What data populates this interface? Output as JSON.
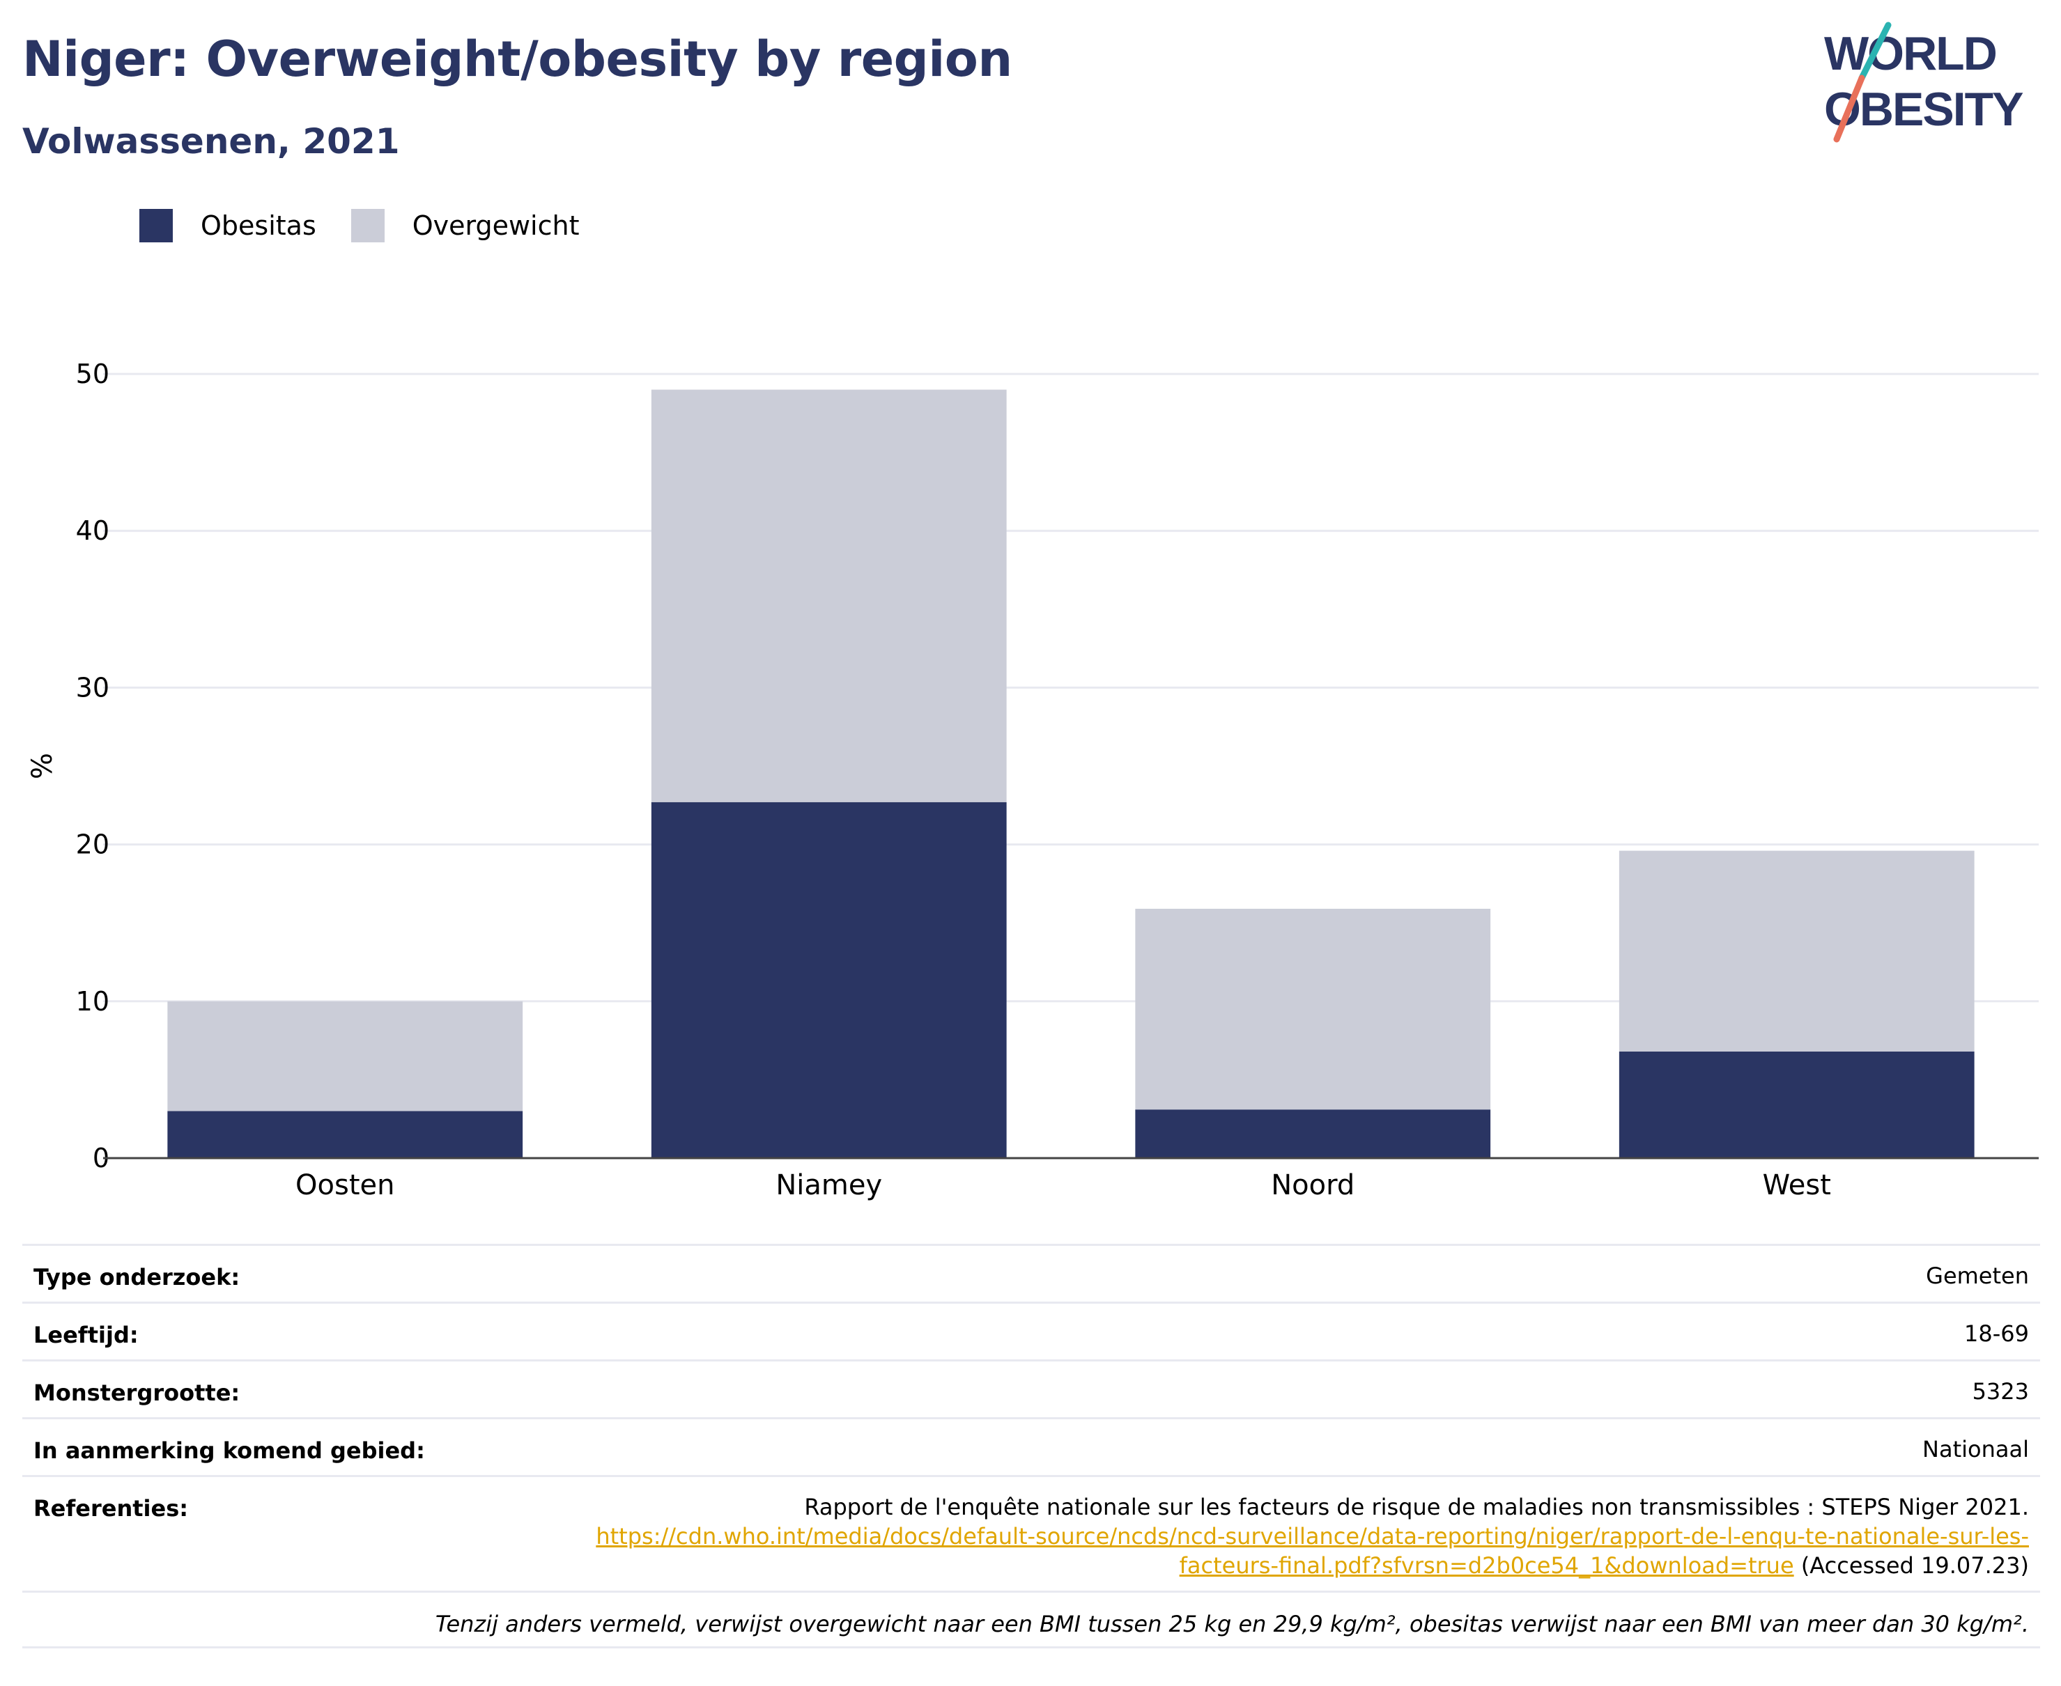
{
  "header": {
    "title": "Niger: Overweight/obesity by region",
    "subtitle": "Volwassenen, 2021"
  },
  "logo": {
    "line1": "WORLD",
    "line2": "OBESITY"
  },
  "colors": {
    "obesity": "#2a3563",
    "overweight": "#cbcdd8",
    "accent_teal": "#2bb3b1",
    "accent_coral": "#e8705a",
    "link": "#e0a500"
  },
  "chart_data": {
    "type": "bar",
    "stacked": true,
    "categories": [
      "Oosten",
      "Niamey",
      "Noord",
      "West"
    ],
    "series": [
      {
        "name": "Obesitas",
        "values": [
          3.0,
          22.7,
          3.1,
          6.8
        ],
        "color": "#2a3563"
      },
      {
        "name": "Overgewicht",
        "values": [
          7.0,
          26.3,
          12.8,
          12.8
        ],
        "color": "#cbcdd8"
      }
    ],
    "ylabel": "%",
    "ylim": [
      0,
      50
    ],
    "yticks": [
      0,
      10,
      20,
      30,
      40,
      50
    ],
    "grid": true,
    "legend": "top-left"
  },
  "info": {
    "survey_type_label": "Type onderzoek:",
    "survey_type_value": "Gemeten",
    "age_label": "Leeftijd:",
    "age_value": "18-69",
    "sample_label": "Monstergrootte:",
    "sample_value": "5323",
    "area_label": "In aanmerking komend gebied:",
    "area_value": "Nationaal",
    "references_label": "Referenties:",
    "reference_text": "Rapport de l'enquête nationale sur les facteurs de risque de maladies non transmissibles : STEPS Niger 2021.",
    "reference_url_line1": "https://cdn.who.int/media/docs/default-source/ncds/ncd-surveillance/data-reporting/niger/rapport-de-l-enqu-te-nationale-sur-les-",
    "reference_url_line2": "facteurs-final.pdf?sfvrsn=d2b0ce54_1&download=true",
    "accessed": " (Accessed 19.07.23)",
    "footnote": "Tenzij anders vermeld, verwijst overgewicht naar een BMI tussen 25 kg en 29,9 kg/m², obesitas verwijst naar een BMI van meer dan 30 kg/m²."
  }
}
